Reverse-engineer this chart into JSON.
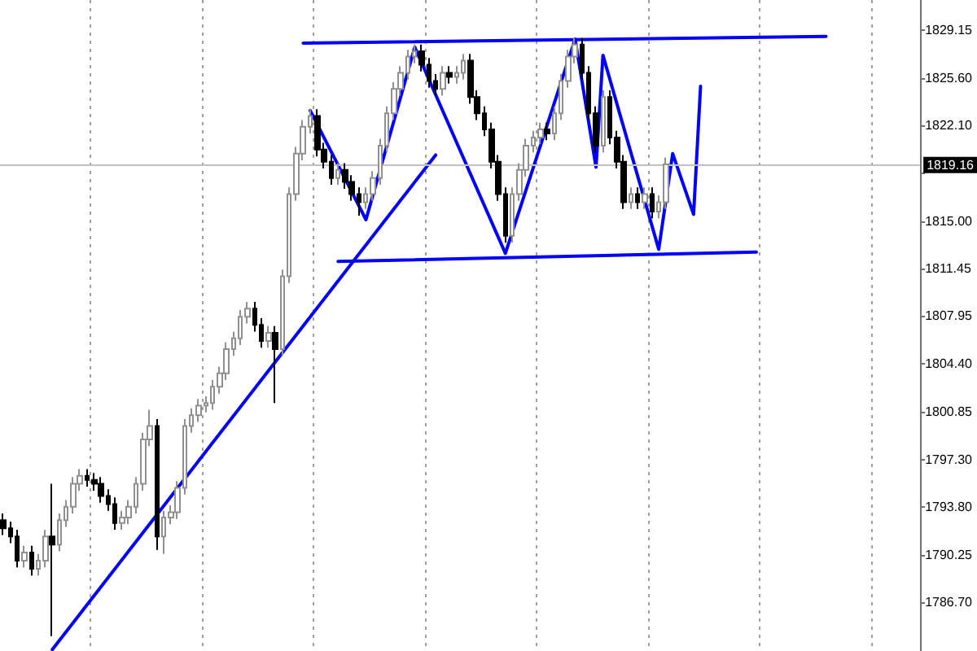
{
  "chart_data": {
    "type": "candlestick",
    "categories": [
      null,
      null,
      null,
      null,
      null,
      null,
      null,
      null,
      null,
      null,
      null,
      null,
      null,
      null,
      null,
      null,
      null,
      null,
      null,
      null,
      null,
      null,
      null,
      null,
      null,
      null,
      null,
      null,
      null,
      null,
      null,
      null,
      null,
      null,
      null,
      null,
      null,
      null,
      null,
      null,
      null,
      null,
      null,
      null,
      null,
      null,
      null,
      null,
      null,
      null,
      null,
      null,
      null,
      null,
      null,
      null,
      null,
      null,
      null,
      null,
      null,
      null,
      null,
      null,
      null,
      null,
      null,
      null,
      null,
      null,
      null,
      null,
      null,
      null,
      null,
      null,
      null,
      null,
      null,
      null,
      null,
      null,
      null,
      null,
      null,
      null,
      null,
      null,
      null,
      null,
      null,
      null,
      null,
      null,
      null,
      null,
      null,
      null,
      null,
      null,
      null,
      null,
      null,
      null,
      null,
      null,
      null,
      null,
      null,
      null,
      null,
      null,
      null,
      null,
      null,
      null,
      null,
      null,
      null,
      null,
      null,
      null,
      null,
      null,
      null,
      null,
      null,
      null,
      null,
      null,
      null,
      null
    ],
    "ylim": [
      1783.1,
      1831.4
    ],
    "yticks": [
      1829.15,
      {
        "value": 1825.6,
        "label": "1825.60"
      },
      {
        "value": 1822.1,
        "label": "1822.10"
      },
      {
        "value": 1818.55,
        "label": null
      },
      {
        "value": 1815,
        "label": "1815.00"
      },
      1811.45,
      1807.95,
      {
        "value": 1804.4,
        "label": "1804.40"
      },
      1800.85,
      {
        "value": 1797.3,
        "label": "1797.30"
      },
      {
        "value": 1793.8,
        "label": "1793.80"
      },
      1790.25,
      {
        "value": 1786.7,
        "label": "1786.70"
      }
    ],
    "tick_labels": "y",
    "grid": "x",
    "ref_lines": [
      {
        "axis": "y",
        "value": 1819.16,
        "label": "1819.16",
        "color": "#c0c0c0"
      }
    ],
    "series": [
      {
        "type": "candlestick",
        "ohlc": [
          [
            1792.8,
            1793.3,
            1791.7,
            1792.2
          ],
          [
            1792.2,
            1792.7,
            1791.1,
            1791.6
          ],
          [
            1791.6,
            1792.1,
            1789.3,
            1789.8
          ],
          [
            1789.8,
            1790.9,
            1789.3,
            1790.4
          ],
          [
            1790.4,
            1790.9,
            1788.7,
            1789.2
          ],
          [
            1789.2,
            1790.3,
            1788.7,
            1789.8
          ],
          [
            1789.8,
            1792.1,
            1789.3,
            1791.6
          ],
          [
            1791.6,
            1795.5,
            1784.2,
            1791.0
          ],
          [
            1791.0,
            1793.3,
            1790.5,
            1792.8
          ],
          [
            1792.8,
            1794.3,
            1792.3,
            1793.8
          ],
          [
            1793.8,
            1796.0,
            1793.3,
            1795.5
          ],
          [
            1795.5,
            1796.6,
            1795.0,
            1796.1
          ],
          [
            1796.1,
            1796.6,
            1795.3,
            1795.8
          ],
          [
            1795.8,
            1796.3,
            1795.0,
            1795.5
          ],
          [
            1795.5,
            1796.0,
            1794.1,
            1794.6
          ],
          [
            1794.6,
            1795.1,
            1793.5,
            1794.0
          ],
          [
            1794.0,
            1794.5,
            1792.1,
            1792.6
          ],
          [
            1792.6,
            1793.5,
            1792.1,
            1793.0
          ],
          [
            1793.0,
            1794.3,
            1792.5,
            1793.8
          ],
          [
            1793.8,
            1796.0,
            1793.3,
            1795.5
          ],
          [
            1795.5,
            1799.3,
            1795.0,
            1798.8
          ],
          [
            1798.8,
            1801.0,
            1798.3,
            1799.8
          ],
          [
            1799.8,
            1800.3,
            1790.6,
            1791.6
          ],
          [
            1791.6,
            1793.5,
            1790.3,
            1793.0
          ],
          [
            1793.0,
            1793.9,
            1792.5,
            1793.4
          ],
          [
            1793.4,
            1795.7,
            1792.9,
            1795.2
          ],
          [
            1795.2,
            1800.3,
            1794.7,
            1799.8
          ],
          [
            1799.8,
            1801.1,
            1799.3,
            1800.6
          ],
          [
            1800.6,
            1801.8,
            1800.1,
            1801.3
          ],
          [
            1801.3,
            1802.0,
            1800.8,
            1801.5
          ],
          [
            1801.5,
            1803.2,
            1801.0,
            1802.7
          ],
          [
            1802.7,
            1804.2,
            1802.2,
            1803.7
          ],
          [
            1803.7,
            1806.0,
            1803.2,
            1805.5
          ],
          [
            1805.5,
            1806.8,
            1805.0,
            1806.3
          ],
          [
            1806.3,
            1808.4,
            1805.8,
            1807.9
          ],
          [
            1807.9,
            1809.0,
            1807.4,
            1808.5
          ],
          [
            1808.5,
            1809.0,
            1806.8,
            1807.3
          ],
          [
            1807.3,
            1807.8,
            1805.6,
            1806.1
          ],
          [
            1806.1,
            1807.2,
            1805.6,
            1806.7
          ],
          [
            1806.7,
            1807.2,
            1801.5,
            1805.5
          ],
          [
            1805.5,
            1811.4,
            1805.0,
            1810.9
          ],
          [
            1810.9,
            1817.5,
            1810.4,
            1817.0
          ],
          [
            1817.0,
            1820.5,
            1816.5,
            1820.0
          ],
          [
            1820.0,
            1822.5,
            1819.5,
            1822.0
          ],
          [
            1822.0,
            1823.3,
            1821.5,
            1822.8
          ],
          [
            1822.8,
            1823.3,
            1819.8,
            1820.3
          ],
          [
            1820.3,
            1820.8,
            1818.9,
            1819.4
          ],
          [
            1819.4,
            1819.9,
            1817.7,
            1818.2
          ],
          [
            1818.2,
            1819.3,
            1817.7,
            1818.8
          ],
          [
            1818.8,
            1819.3,
            1817.4,
            1817.9
          ],
          [
            1817.9,
            1818.4,
            1816.5,
            1817.0
          ],
          [
            1817.0,
            1817.5,
            1815.4,
            1816.4
          ],
          [
            1816.4,
            1817.5,
            1815.9,
            1817.0
          ],
          [
            1817.0,
            1818.7,
            1816.5,
            1818.2
          ],
          [
            1818.2,
            1821.1,
            1817.7,
            1820.6
          ],
          [
            1820.6,
            1823.5,
            1820.1,
            1823.0
          ],
          [
            1823.0,
            1825.3,
            1822.5,
            1824.8
          ],
          [
            1824.8,
            1826.5,
            1824.3,
            1826.0
          ],
          [
            1826.0,
            1827.7,
            1825.5,
            1827.2
          ],
          [
            1827.2,
            1828.1,
            1826.7,
            1827.6
          ],
          [
            1827.6,
            1828.1,
            1826.1,
            1826.6
          ],
          [
            1826.6,
            1827.1,
            1824.9,
            1825.4
          ],
          [
            1825.4,
            1825.9,
            1824.3,
            1824.8
          ],
          [
            1824.8,
            1826.5,
            1824.3,
            1826.0
          ],
          [
            1826.0,
            1826.5,
            1825.2,
            1825.7
          ],
          [
            1825.7,
            1826.5,
            1825.2,
            1826.0
          ],
          [
            1826.0,
            1827.4,
            1825.5,
            1826.9
          ],
          [
            1826.9,
            1827.4,
            1823.7,
            1824.2
          ],
          [
            1824.2,
            1824.7,
            1822.5,
            1823.0
          ],
          [
            1823.0,
            1823.5,
            1821.3,
            1821.8
          ],
          [
            1821.8,
            1822.3,
            1818.9,
            1819.4
          ],
          [
            1819.4,
            1819.9,
            1816.5,
            1817.0
          ],
          [
            1817.0,
            1817.5,
            1813.4,
            1813.9
          ],
          [
            1813.9,
            1817.5,
            1813.4,
            1817.0
          ],
          [
            1817.0,
            1819.3,
            1816.5,
            1818.8
          ],
          [
            1818.8,
            1821.1,
            1818.3,
            1820.6
          ],
          [
            1820.6,
            1821.7,
            1820.1,
            1821.2
          ],
          [
            1821.2,
            1822.3,
            1820.7,
            1821.8
          ],
          [
            1821.8,
            1822.3,
            1821.0,
            1821.5
          ],
          [
            1821.5,
            1823.5,
            1821.0,
            1823.0
          ],
          [
            1823.0,
            1825.9,
            1822.5,
            1825.4
          ],
          [
            1825.4,
            1827.7,
            1824.9,
            1827.2
          ],
          [
            1827.2,
            1828.6,
            1826.7,
            1828.1
          ],
          [
            1828.1,
            1828.6,
            1825.5,
            1826.0
          ],
          [
            1826.0,
            1826.5,
            1822.5,
            1823.0
          ],
          [
            1823.0,
            1823.5,
            1820.1,
            1820.6
          ],
          [
            1820.6,
            1824.7,
            1820.1,
            1824.2
          ],
          [
            1824.2,
            1824.7,
            1820.7,
            1821.2
          ],
          [
            1821.2,
            1821.7,
            1818.9,
            1819.4
          ],
          [
            1819.4,
            1819.9,
            1815.9,
            1816.4
          ],
          [
            1816.4,
            1817.5,
            1815.9,
            1817.0
          ],
          [
            1817.0,
            1817.5,
            1815.9,
            1816.4
          ],
          [
            1816.4,
            1817.5,
            1815.9,
            1817.0
          ],
          [
            1817.0,
            1817.5,
            1815.2,
            1815.7
          ],
          [
            1815.7,
            1816.9,
            1815.2,
            1816.4
          ],
          [
            1816.4,
            1819.7,
            1815.9,
            1819.2
          ],
          null,
          null,
          null,
          null,
          null,
          null,
          null,
          null,
          null,
          null,
          null,
          null,
          null,
          null,
          null,
          null,
          null,
          null,
          null,
          null,
          null,
          null,
          null,
          null,
          null,
          null,
          null,
          null,
          null,
          null,
          null,
          null,
          null,
          null,
          null,
          null
        ]
      },
      {
        "type": "line",
        "color": "#0000ff",
        "values": [
          null,
          null,
          null,
          null,
          null,
          null,
          null,
          1783.2,
          null,
          null,
          null,
          null,
          null,
          null,
          null,
          null,
          null,
          null,
          null,
          null,
          null,
          null,
          null,
          null,
          null,
          null,
          null,
          null,
          null,
          null,
          null,
          null,
          null,
          null,
          null,
          null,
          null,
          null,
          null,
          null,
          null,
          null,
          null,
          null,
          null,
          null,
          null,
          null,
          null,
          null,
          null,
          null,
          null,
          null,
          null,
          null,
          null,
          null,
          null,
          null,
          null,
          null,
          1819.9,
          null,
          null,
          null,
          null,
          null,
          null,
          null,
          null,
          null,
          null,
          null,
          null,
          null,
          null,
          null,
          null,
          null,
          null,
          null,
          null,
          null,
          null,
          null,
          null,
          null,
          null,
          null,
          null,
          null,
          null,
          null,
          null,
          null,
          null,
          null,
          null,
          null,
          null,
          null,
          null,
          null,
          null,
          null,
          null,
          null,
          null,
          null,
          null,
          null,
          null,
          null,
          null,
          null,
          null,
          null,
          null,
          null,
          null,
          null,
          null,
          null,
          null,
          null,
          null,
          null,
          null,
          null,
          null,
          null
        ]
      },
      {
        "type": "line",
        "color": "#0000ff",
        "values": [
          null,
          null,
          null,
          null,
          null,
          null,
          null,
          null,
          null,
          null,
          null,
          null,
          null,
          null,
          null,
          null,
          null,
          null,
          null,
          null,
          null,
          null,
          null,
          null,
          null,
          null,
          null,
          null,
          null,
          null,
          null,
          null,
          null,
          null,
          null,
          null,
          null,
          null,
          null,
          null,
          null,
          null,
          null,
          1828.2,
          null,
          null,
          null,
          null,
          null,
          null,
          null,
          null,
          null,
          null,
          null,
          null,
          null,
          null,
          null,
          null,
          null,
          null,
          null,
          null,
          null,
          null,
          null,
          null,
          null,
          null,
          null,
          null,
          null,
          null,
          null,
          null,
          null,
          null,
          null,
          null,
          null,
          null,
          null,
          null,
          null,
          null,
          null,
          null,
          null,
          null,
          null,
          null,
          null,
          null,
          null,
          null,
          null,
          null,
          null,
          null,
          null,
          null,
          null,
          null,
          null,
          null,
          null,
          null,
          null,
          null,
          null,
          null,
          null,
          null,
          null,
          null,
          null,
          null,
          1828.7,
          null,
          null,
          null,
          null,
          null,
          null,
          null,
          null,
          null,
          null,
          null,
          null,
          null
        ]
      },
      {
        "type": "line",
        "color": "#0000ff",
        "values": [
          null,
          null,
          null,
          null,
          null,
          null,
          null,
          null,
          null,
          null,
          null,
          null,
          null,
          null,
          null,
          null,
          null,
          null,
          null,
          null,
          null,
          null,
          null,
          null,
          null,
          null,
          null,
          null,
          null,
          null,
          null,
          null,
          null,
          null,
          null,
          null,
          null,
          null,
          null,
          null,
          null,
          null,
          null,
          null,
          null,
          null,
          null,
          null,
          1812.0,
          null,
          null,
          null,
          null,
          null,
          null,
          null,
          null,
          null,
          null,
          null,
          null,
          null,
          null,
          null,
          null,
          null,
          null,
          null,
          null,
          null,
          null,
          null,
          null,
          null,
          null,
          null,
          null,
          null,
          null,
          null,
          null,
          null,
          null,
          null,
          null,
          null,
          null,
          null,
          null,
          null,
          null,
          null,
          null,
          null,
          null,
          null,
          null,
          null,
          null,
          null,
          null,
          null,
          null,
          null,
          null,
          null,
          null,
          null,
          1812.7,
          null,
          null,
          null,
          null,
          null,
          null,
          null,
          null,
          null,
          null,
          null,
          null,
          null,
          null,
          null,
          null,
          null,
          null,
          null,
          null,
          null,
          null,
          null
        ]
      },
      {
        "type": "line",
        "color": "#0000ff",
        "values": [
          null,
          null,
          null,
          null,
          null,
          null,
          null,
          null,
          null,
          null,
          null,
          null,
          null,
          null,
          null,
          null,
          null,
          null,
          null,
          null,
          null,
          null,
          null,
          null,
          null,
          null,
          null,
          null,
          null,
          null,
          null,
          null,
          null,
          null,
          null,
          null,
          null,
          null,
          null,
          null,
          null,
          null,
          null,
          null,
          1823.2,
          null,
          null,
          null,
          null,
          null,
          null,
          null,
          1815.1,
          null,
          null,
          null,
          null,
          null,
          null,
          1827.9,
          null,
          null,
          null,
          null,
          null,
          null,
          null,
          null,
          null,
          null,
          null,
          null,
          1812.6,
          null,
          null,
          null,
          null,
          null,
          null,
          null,
          null,
          null,
          1828.5,
          null,
          null,
          1819.0,
          1827.3,
          null,
          null,
          null,
          null,
          null,
          null,
          null,
          1812.9,
          null,
          1820.0,
          null,
          null,
          1815.5,
          1825.0,
          null,
          null,
          null,
          null,
          null,
          null,
          null,
          null,
          null,
          null,
          null,
          null,
          null,
          null,
          null,
          null,
          null,
          null,
          null,
          null,
          null,
          null,
          null,
          null,
          null,
          null,
          null,
          null,
          null,
          null,
          null
        ]
      }
    ]
  }
}
